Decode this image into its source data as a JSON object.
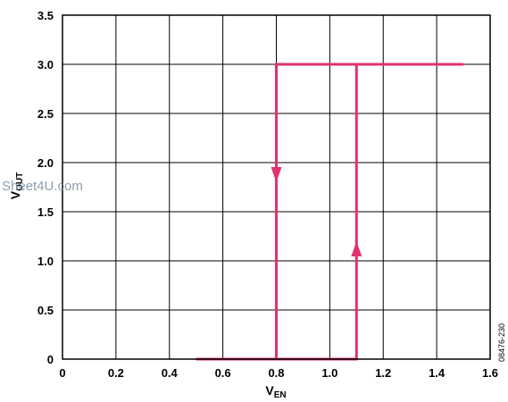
{
  "watermark": "Sheet4U.com",
  "figure_id": "08476-230",
  "chart_data": {
    "type": "line",
    "xlabel_main": "V",
    "xlabel_sub": "EN",
    "ylabel_main": "V",
    "ylabel_sub": "OUT",
    "xlim": [
      0,
      1.6
    ],
    "ylim": [
      0,
      3.5
    ],
    "x_ticks": [
      0,
      0.2,
      0.4,
      0.6,
      0.8,
      1.0,
      1.2,
      1.4,
      1.6
    ],
    "x_tick_labels": [
      "0",
      "0.2",
      "0.4",
      "0.6",
      "0.8",
      "1.0",
      "1.2",
      "1.4",
      "1.6"
    ],
    "y_ticks": [
      0,
      0.5,
      1.0,
      1.5,
      2.0,
      2.5,
      3.0,
      3.5
    ],
    "y_tick_labels": [
      "0",
      "0.5",
      "1.0",
      "1.5",
      "2.0",
      "2.5",
      "3.0",
      "3.5"
    ],
    "grid": true,
    "line_color": "#e0336b",
    "series": [
      {
        "direction": "rising",
        "x": [
          0.5,
          1.1,
          1.1,
          1.5
        ],
        "y": [
          0,
          0,
          3.0,
          3.0
        ],
        "arrow": {
          "x": 1.1,
          "y": 1.2,
          "points": "up"
        }
      },
      {
        "direction": "falling",
        "x": [
          1.5,
          0.8,
          0.8,
          0.5
        ],
        "y": [
          3.0,
          3.0,
          0,
          0
        ],
        "arrow": {
          "x": 0.8,
          "y": 1.8,
          "points": "down"
        }
      }
    ]
  }
}
